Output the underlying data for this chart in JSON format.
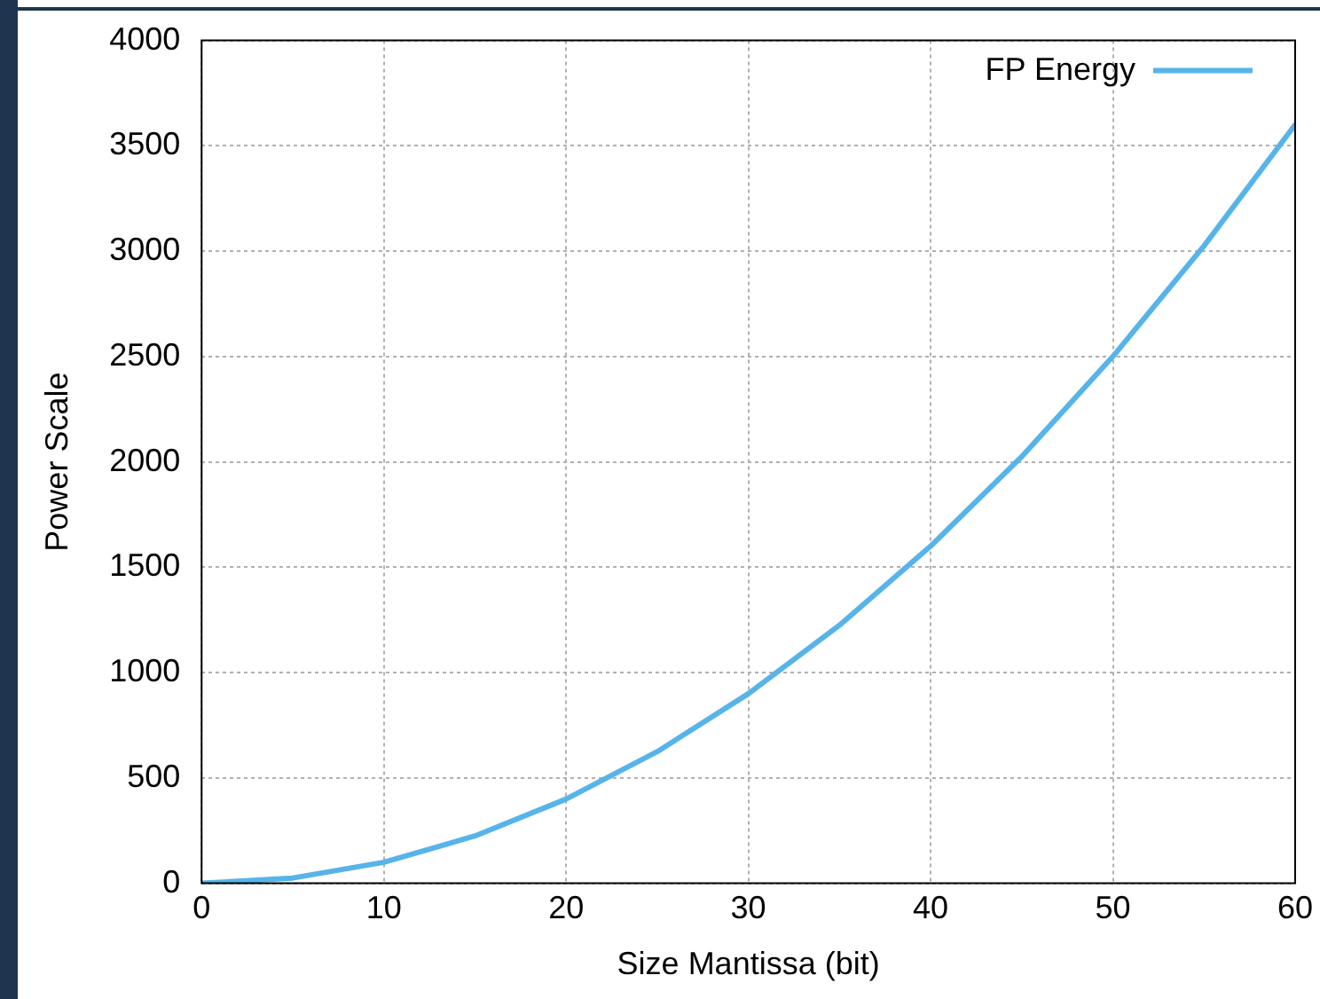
{
  "chart_data": {
    "type": "line",
    "xlabel": "Size Mantissa (bit)",
    "ylabel": "Power Scale",
    "x": [
      0,
      5,
      10,
      15,
      20,
      25,
      30,
      35,
      40,
      45,
      50,
      55,
      60
    ],
    "series": [
      {
        "name": "FP Energy",
        "color": "#56b4e9",
        "values": [
          0,
          25,
          100,
          225,
          400,
          625,
          900,
          1225,
          1600,
          2025,
          2500,
          3025,
          3600
        ]
      }
    ],
    "xlim": [
      0,
      60
    ],
    "xticks": [
      0,
      10,
      20,
      30,
      40,
      50,
      60
    ],
    "ylim": [
      0,
      4000
    ],
    "yticks": [
      0,
      500,
      1000,
      1500,
      2000,
      2500,
      3000,
      3500,
      4000
    ],
    "grid": true,
    "legend": "top right",
    "marker": "none",
    "line_style": "solid"
  }
}
